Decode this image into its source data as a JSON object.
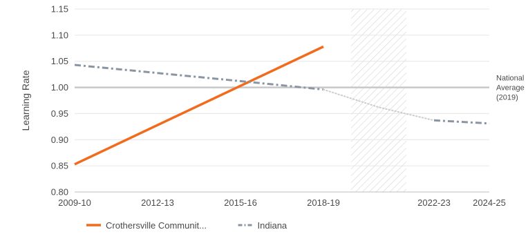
{
  "chart_data": {
    "type": "line",
    "ylabel": "Learning Rate",
    "ylim": [
      0.8,
      1.15
    ],
    "y_ticks": [
      "0.80",
      "0.85",
      "0.90",
      "0.95",
      "1.00",
      "1.05",
      "1.10",
      "1.15"
    ],
    "x_ticks": [
      "2009-10",
      "2012-13",
      "2015-16",
      "2018-19",
      "2022-23",
      "2024-25"
    ],
    "x_domain": [
      "2009-10",
      "2024-25"
    ],
    "grid": true,
    "legend_position": "bottom-left",
    "shaded_period": {
      "start": "2019-20",
      "end": "2021-22",
      "pattern": "diagonal-hatch"
    },
    "reference_line": {
      "value": 1.0,
      "label_lines": [
        "National",
        "Average",
        "(2019)"
      ]
    },
    "series": [
      {
        "name": "Crothersville Communit...",
        "style": "solid",
        "color": "#f26b1d",
        "x": [
          "2009-10",
          "2018-19"
        ],
        "y": [
          0.853,
          1.078
        ]
      },
      {
        "name": "Indiana",
        "style": "dash-dot",
        "color": "#8a95a3",
        "x": [
          "2009-10",
          "2015-16",
          "2018-19"
        ],
        "y": [
          1.043,
          1.012,
          0.996
        ]
      },
      {
        "name": "",
        "style": "dotted",
        "color": "#c9cdd2",
        "x": [
          "2018-19",
          "2020-21",
          "2022-23"
        ],
        "y": [
          0.996,
          0.962,
          0.937
        ]
      },
      {
        "name": "",
        "style": "dash-dot",
        "color": "#8a95a3",
        "x": [
          "2022-23",
          "2024-25"
        ],
        "y": [
          0.937,
          0.931
        ]
      }
    ]
  }
}
